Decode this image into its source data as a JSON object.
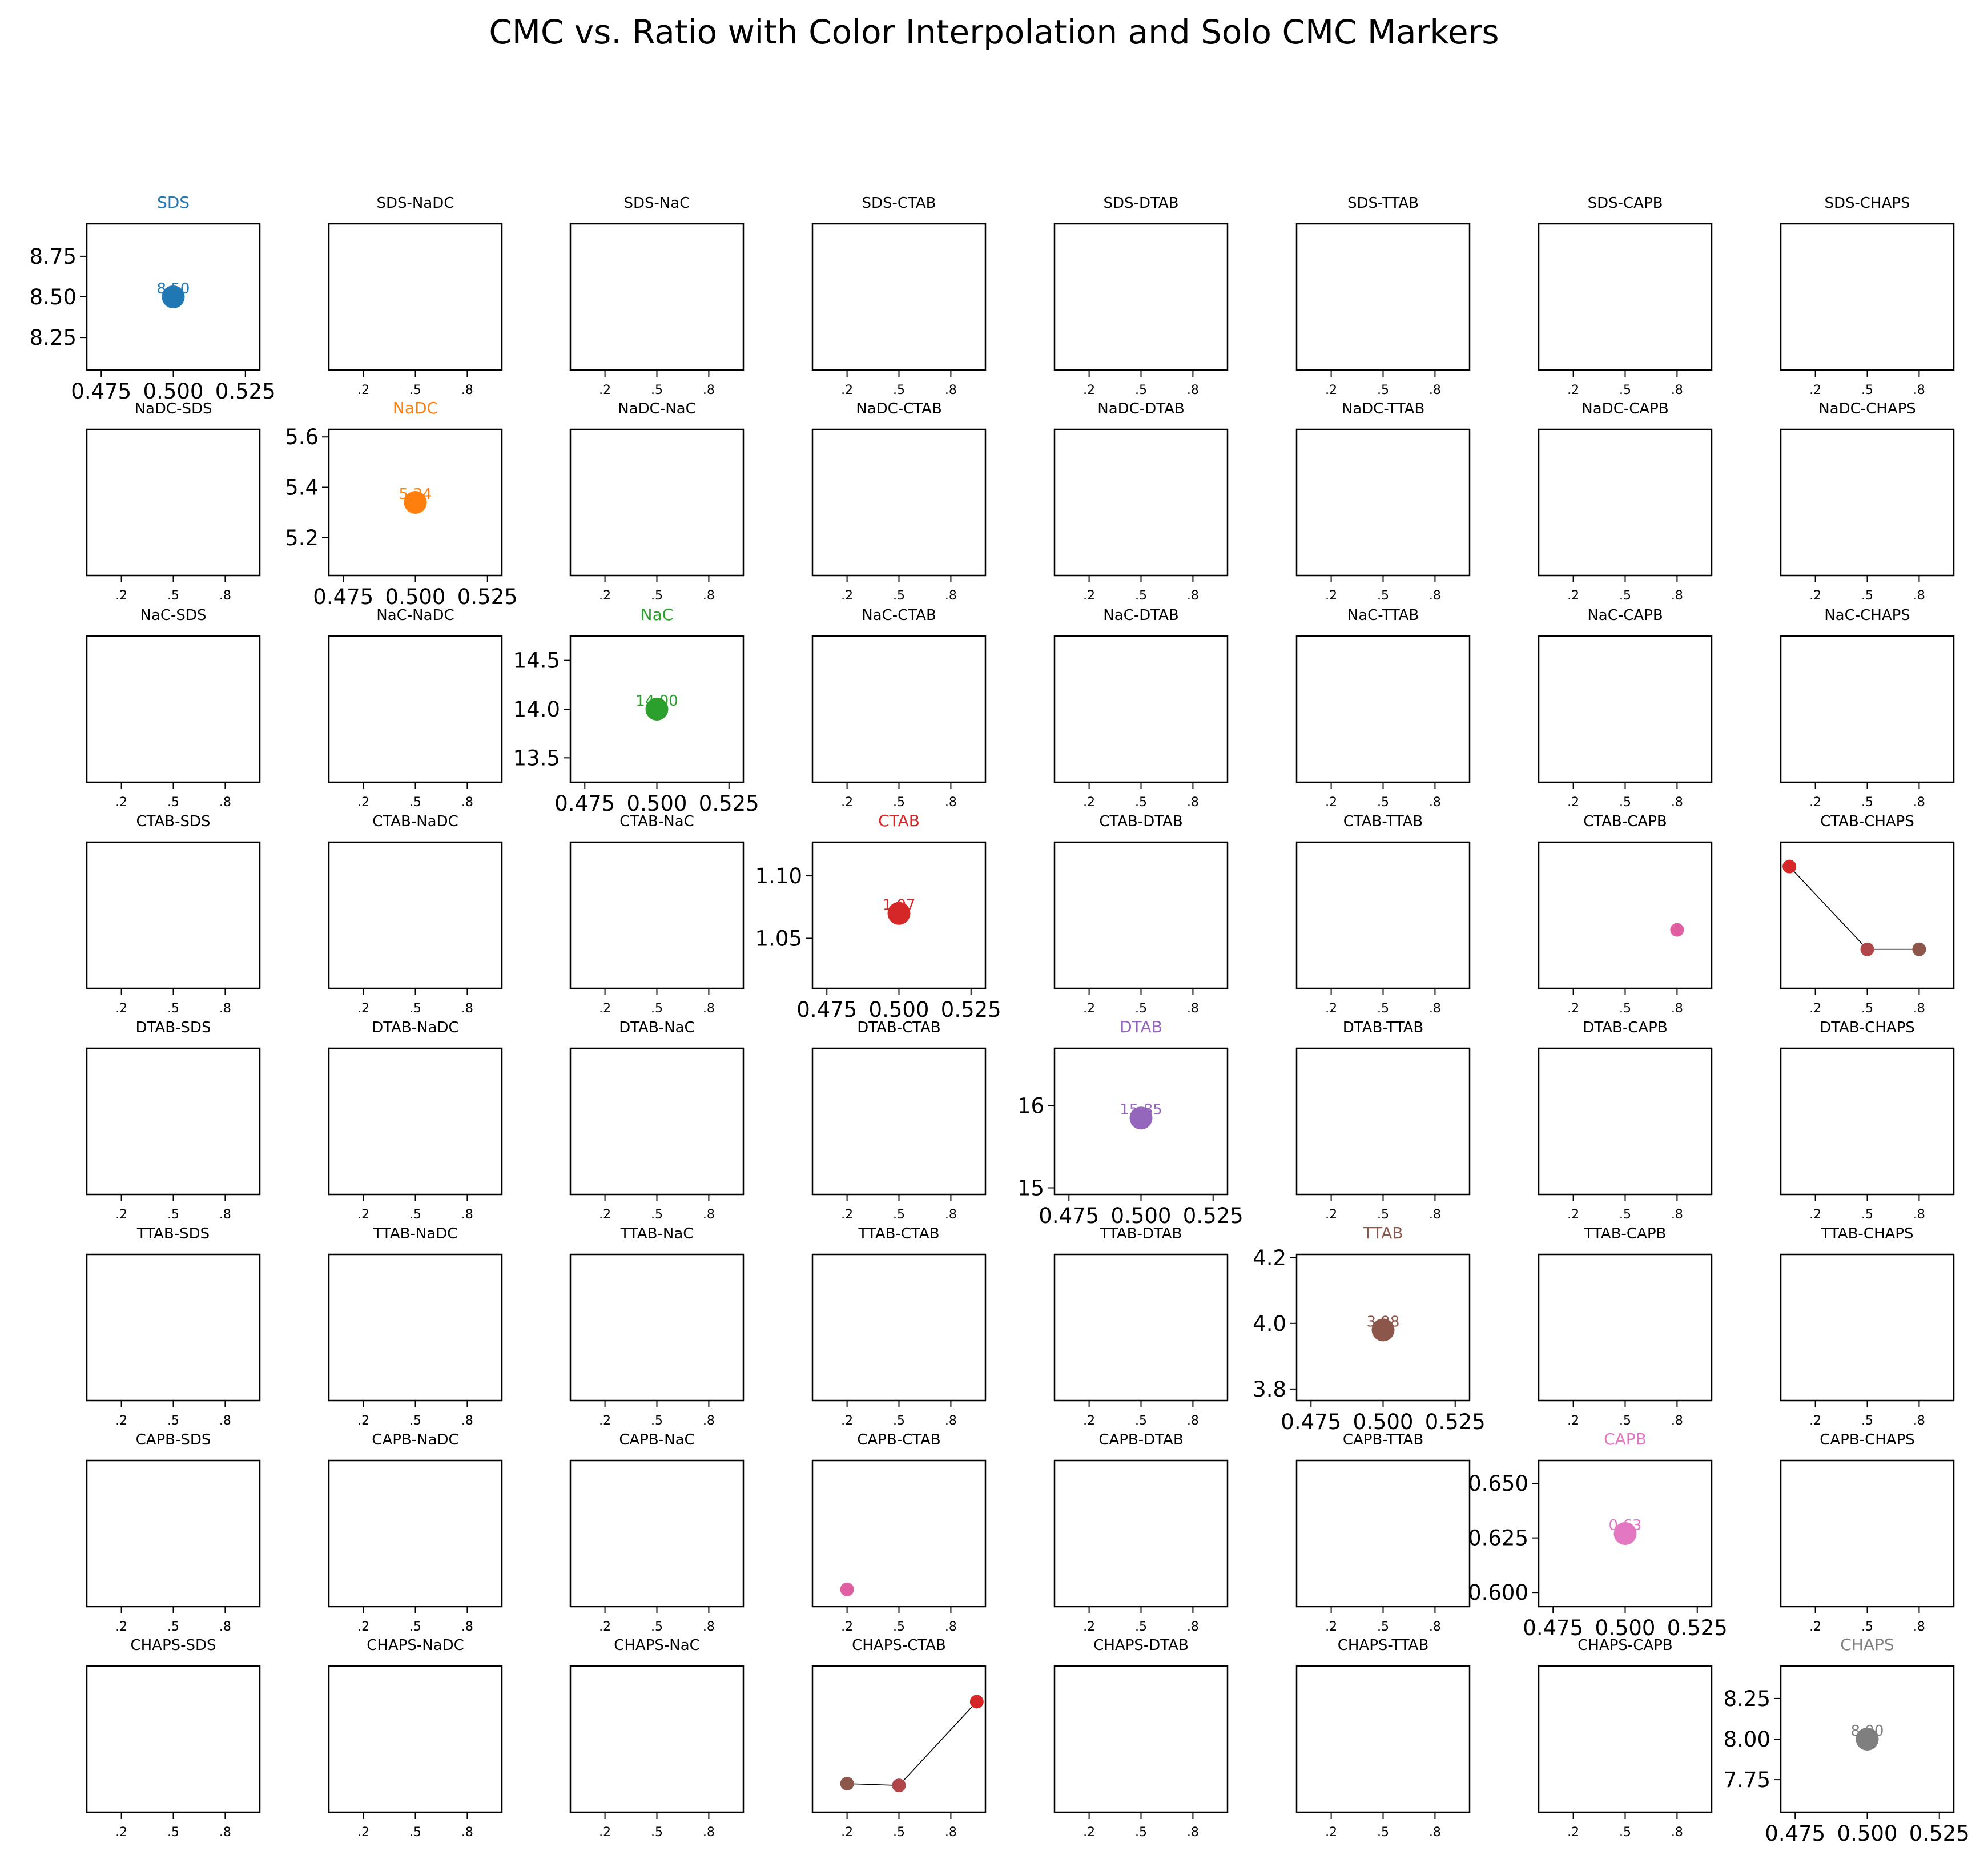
{
  "chart_data": {
    "type": "scatter",
    "title": "CMC vs. Ratio with Color Interpolation and Solo CMC Markers",
    "surfactants": [
      "SDS",
      "NaDC",
      "NaC",
      "CTAB",
      "DTAB",
      "TTAB",
      "CAPB",
      "CHAPS"
    ],
    "colors": {
      "SDS": "#1f77b4",
      "NaDC": "#ff7f0e",
      "NaC": "#2ca02c",
      "CTAB": "#d62728",
      "DTAB": "#9467bd",
      "TTAB": "#8c564b",
      "CAPB": "#e377c2",
      "CHAPS": "#7f7f7f"
    },
    "pair_x_ticks": [
      ".2",
      ".5",
      ".8"
    ],
    "pair_x_values": [
      0.2,
      0.5,
      0.8
    ],
    "pair_xlim": [
      0.0,
      1.0
    ],
    "solo_xlim": [
      0.47,
      0.53
    ],
    "solo_x_ticks": [
      "0.475",
      "0.500",
      "0.525"
    ],
    "solo_x_values": [
      0.475,
      0.5,
      0.525
    ],
    "solo": [
      {
        "name": "SDS",
        "cmc": 8.5,
        "label": "8.50",
        "ylim": [
          8.05,
          8.95
        ],
        "yticks": [
          8.25,
          8.5,
          8.75
        ],
        "ytick_labels": [
          "8.25",
          "8.50",
          "8.75"
        ]
      },
      {
        "name": "NaDC",
        "cmc": 5.34,
        "label": "5.34",
        "ylim": [
          5.05,
          5.63
        ],
        "yticks": [
          5.2,
          5.4,
          5.6
        ],
        "ytick_labels": [
          "5.2",
          "5.4",
          "5.6"
        ]
      },
      {
        "name": "NaC",
        "cmc": 14.0,
        "label": "14.00",
        "ylim": [
          13.25,
          14.75
        ],
        "yticks": [
          13.5,
          14.0,
          14.5
        ],
        "ytick_labels": [
          "13.5",
          "14.0",
          "14.5"
        ]
      },
      {
        "name": "CTAB",
        "cmc": 1.07,
        "label": "1.07",
        "ylim": [
          1.01,
          1.127
        ],
        "yticks": [
          1.05,
          1.1
        ],
        "ytick_labels": [
          "1.05",
          "1.10"
        ]
      },
      {
        "name": "DTAB",
        "cmc": 15.85,
        "label": "15.85",
        "ylim": [
          14.92,
          16.7
        ],
        "yticks": [
          15,
          16
        ],
        "ytick_labels": [
          "15",
          "16"
        ]
      },
      {
        "name": "TTAB",
        "cmc": 3.98,
        "label": "3.98",
        "ylim": [
          3.765,
          4.21
        ],
        "yticks": [
          3.8,
          4.0,
          4.2
        ],
        "ytick_labels": [
          "3.8",
          "4.0",
          "4.2"
        ]
      },
      {
        "name": "CAPB",
        "cmc": 0.627,
        "label": "0.63",
        "ylim": [
          0.5935,
          0.6605
        ],
        "yticks": [
          0.6,
          0.625,
          0.65
        ],
        "ytick_labels": [
          "0.600",
          "0.625",
          "0.650"
        ]
      },
      {
        "name": "CHAPS",
        "cmc": 8.0,
        "label": "8.00",
        "ylim": [
          7.55,
          8.45
        ],
        "yticks": [
          7.75,
          8.0,
          8.25
        ],
        "ytick_labels": [
          "7.75",
          "8.00",
          "8.25"
        ]
      }
    ],
    "pair_series": [
      {
        "pair": "CTAB-CAPB",
        "x": [
          0.8
        ],
        "y": [
          0.63
        ],
        "colors": [
          "#e05fa3"
        ],
        "line": false,
        "ylim": [
          0.55,
          0.75
        ]
      },
      {
        "pair": "CTAB-CHAPS",
        "x": [
          0.05,
          0.5,
          0.8
        ],
        "y": [
          1.35,
          0.84,
          0.84
        ],
        "colors": [
          "#d62728",
          "#b0464a",
          "#8c564b"
        ],
        "line": true,
        "ylim": [
          0.6,
          1.5
        ]
      },
      {
        "pair": "CAPB-CTAB",
        "x": [
          0.2
        ],
        "y": [
          0.63
        ],
        "colors": [
          "#e05fa3"
        ],
        "line": false,
        "ylim": [
          0.5,
          1.6
        ]
      },
      {
        "pair": "CHAPS-CTAB",
        "x": [
          0.2,
          0.5,
          0.95
        ],
        "y": [
          0.84,
          0.83,
          1.3
        ],
        "colors": [
          "#8c564b",
          "#b0464a",
          "#d62728"
        ],
        "line": true,
        "ylim": [
          0.68,
          1.5
        ]
      }
    ]
  }
}
